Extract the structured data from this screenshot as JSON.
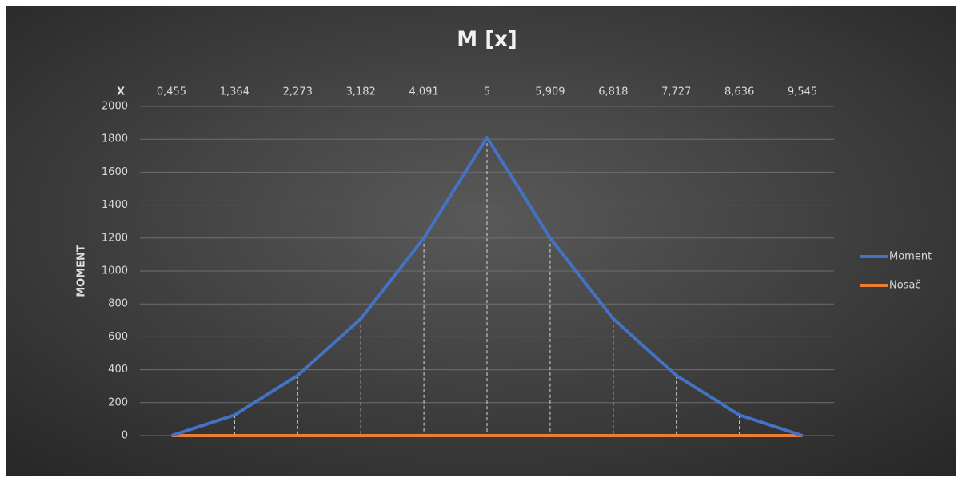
{
  "chart_data": {
    "type": "line",
    "title": "M [x]",
    "x_label": "X",
    "y_label": "MOMENT",
    "categories": [
      "0,455",
      "1,364",
      "2,273",
      "3,182",
      "4,091",
      "5",
      "5,909",
      "6,818",
      "7,727",
      "8,636",
      "9,545"
    ],
    "series": [
      {
        "name": "Moment",
        "color": "#4472c4",
        "values": [
          0,
          125,
          365,
          710,
          1200,
          1810,
          1200,
          710,
          365,
          125,
          0
        ]
      },
      {
        "name": "Nosač",
        "color": "#ed7d31",
        "values": [
          0,
          0,
          0,
          0,
          0,
          0,
          0,
          0,
          0,
          0,
          0
        ]
      }
    ],
    "ylim": [
      0,
      2000
    ],
    "yticks": [
      0,
      200,
      400,
      600,
      800,
      1000,
      1200,
      1400,
      1600,
      1800,
      2000
    ],
    "grid": true,
    "drop_lines": true,
    "legend": "right"
  }
}
